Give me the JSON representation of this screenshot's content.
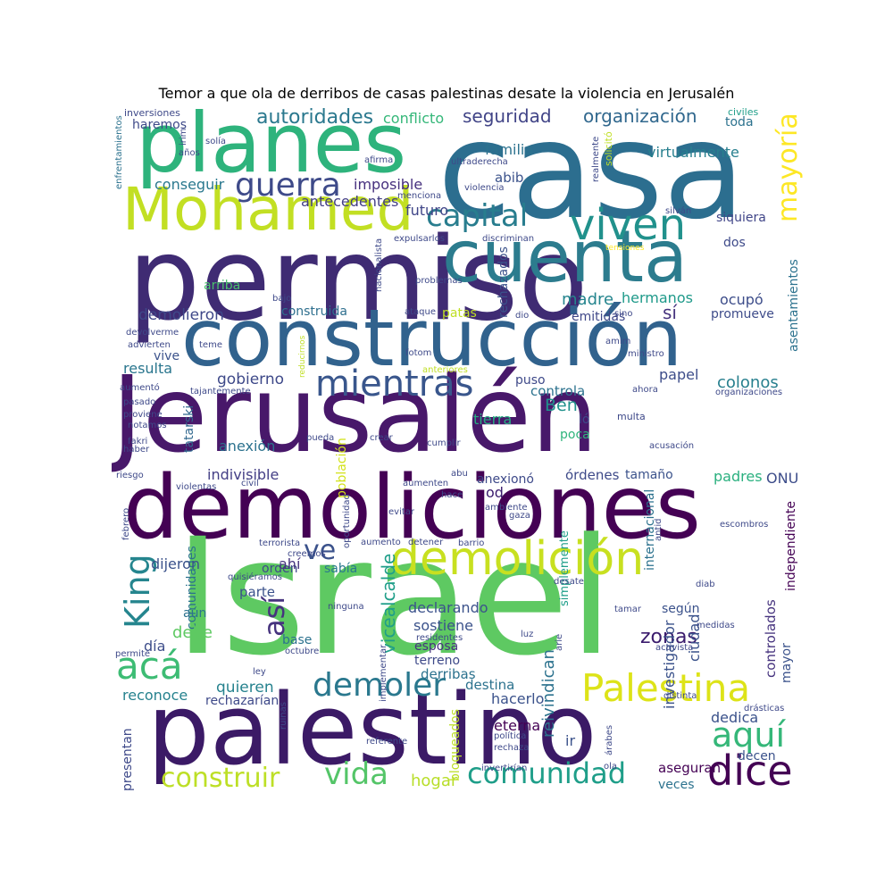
{
  "title": "Temor a que ola de derribos de casas palestinas desate la violencia en Jerusalén",
  "words": [
    {
      "text": "casa",
      "color": "#2c6e8f"
    },
    {
      "text": "permiso",
      "color": "#3f2b73"
    },
    {
      "text": "planes",
      "color": "#2eb37c"
    },
    {
      "text": "Mohamed",
      "color": "#c2df23"
    },
    {
      "text": "cuenta",
      "color": "#2c7c8e"
    },
    {
      "text": "construcción",
      "color": "#31628d"
    },
    {
      "text": "Jerusalén",
      "color": "#48186a"
    },
    {
      "text": "demoliciones",
      "color": "#440154"
    },
    {
      "text": "Israel",
      "color": "#5ec962"
    },
    {
      "text": "palestino",
      "color": "#3b1a66"
    },
    {
      "text": "demolición",
      "color": "#c8e020"
    },
    {
      "text": "mientras",
      "color": "#39568c"
    },
    {
      "text": "viven",
      "color": "#21918c"
    },
    {
      "text": "guerra",
      "color": "#3e4a89"
    },
    {
      "text": "capital",
      "color": "#287d8e"
    },
    {
      "text": "mayoría",
      "color": "#fde725"
    },
    {
      "text": "autoridades",
      "color": "#2a788e"
    },
    {
      "text": "seguridad",
      "color": "#414487"
    },
    {
      "text": "organización",
      "color": "#31688e"
    },
    {
      "text": "Palestina",
      "color": "#dde318"
    },
    {
      "text": "aquí",
      "color": "#35b779"
    },
    {
      "text": "dice",
      "color": "#440154"
    },
    {
      "text": "comunidad",
      "color": "#1f9e89"
    },
    {
      "text": "vida",
      "color": "#54c568"
    },
    {
      "text": "construir",
      "color": "#bddf26"
    },
    {
      "text": "demoler",
      "color": "#2a788e"
    },
    {
      "text": "acá",
      "color": "#3dbc74"
    },
    {
      "text": "King",
      "color": "#25858e"
    },
    {
      "text": "ve",
      "color": "#3b528b"
    },
    {
      "text": "así",
      "color": "#46337e"
    },
    {
      "text": "zonas",
      "color": "#3b1c6d"
    },
    {
      "text": "hogar",
      "color": "#b8de29"
    },
    {
      "text": "conflicto",
      "color": "#35b779"
    },
    {
      "text": "toda",
      "color": "#2c728e"
    },
    {
      "text": "civiles",
      "color": "#1f9e89"
    },
    {
      "text": "virtualmente",
      "color": "#277f8e"
    },
    {
      "text": "familia",
      "color": "#2c728e"
    },
    {
      "text": "imposible",
      "color": "#46307e"
    },
    {
      "text": "abib",
      "color": "#3b528b"
    },
    {
      "text": "conseguir",
      "color": "#2a788e"
    },
    {
      "text": "haremos",
      "color": "#3e4989"
    },
    {
      "text": "antecedentes",
      "color": "#433e85"
    },
    {
      "text": "futuro",
      "color": "#404688"
    },
    {
      "text": "siquiera",
      "color": "#404588"
    },
    {
      "text": "dos",
      "color": "#3e4a89"
    },
    {
      "text": "madre",
      "color": "#25858e"
    },
    {
      "text": "hermanos",
      "color": "#1f9a8a"
    },
    {
      "text": "ocupó",
      "color": "#3d4d8a"
    },
    {
      "text": "promueve",
      "color": "#3e4c8a"
    },
    {
      "text": "sí",
      "color": "#46337e"
    },
    {
      "text": "emitidas",
      "color": "#3f4788"
    },
    {
      "text": "patas",
      "color": "#c0df25"
    },
    {
      "text": "construida",
      "color": "#2e6f8e"
    },
    {
      "text": "demolieron",
      "color": "#3f4889"
    },
    {
      "text": "arriba",
      "color": "#4ac16d"
    },
    {
      "text": "vive",
      "color": "#3b528b"
    },
    {
      "text": "resulta",
      "color": "#2a768e"
    },
    {
      "text": "gobierno",
      "color": "#3e4989"
    },
    {
      "text": "colonos",
      "color": "#277f8e"
    },
    {
      "text": "papel",
      "color": "#3d4d8a"
    },
    {
      "text": "puso",
      "color": "#3e4989"
    },
    {
      "text": "controla",
      "color": "#2c728e"
    },
    {
      "text": "Ben",
      "color": "#21918c"
    },
    {
      "text": "ló",
      "color": "#3e4a89"
    },
    {
      "text": "tierra",
      "color": "#26ad81"
    },
    {
      "text": "poca",
      "color": "#2fb47c"
    },
    {
      "text": "anexión",
      "color": "#2c728e"
    },
    {
      "text": "indivisible",
      "color": "#433e85"
    },
    {
      "text": "órdenes",
      "color": "#3e4a89"
    },
    {
      "text": "tamaño",
      "color": "#3b528b"
    },
    {
      "text": "padres",
      "color": "#2ab07f"
    },
    {
      "text": "ONU",
      "color": "#3d4d8a"
    },
    {
      "text": "anexionó",
      "color": "#3e4a89"
    },
    {
      "text": "od",
      "color": "#3b1c6d"
    },
    {
      "text": "comunidades",
      "color": "#2c728e"
    },
    {
      "text": "orden",
      "color": "#3e4989"
    },
    {
      "text": "ahí",
      "color": "#46337e"
    },
    {
      "text": "sabía",
      "color": "#2a788e"
    },
    {
      "text": "dijeron",
      "color": "#3b528b"
    },
    {
      "text": "parte",
      "color": "#3b528b"
    },
    {
      "text": "aún",
      "color": "#2c728e"
    },
    {
      "text": "declarando",
      "color": "#3b528b"
    },
    {
      "text": "según",
      "color": "#3b528b"
    },
    {
      "text": "debe",
      "color": "#5ec962"
    },
    {
      "text": "sostiene",
      "color": "#3b528b"
    },
    {
      "text": "base",
      "color": "#2c728e"
    },
    {
      "text": "esposa",
      "color": "#46337e"
    },
    {
      "text": "día",
      "color": "#3d4d8a"
    },
    {
      "text": "quieren",
      "color": "#26828e"
    },
    {
      "text": "rechazarían",
      "color": "#3e4989"
    },
    {
      "text": "reconoce",
      "color": "#26828e"
    },
    {
      "text": "terreno",
      "color": "#3e4989"
    },
    {
      "text": "derribas",
      "color": "#2c728e"
    },
    {
      "text": "destina",
      "color": "#2c728e"
    },
    {
      "text": "hacerlo",
      "color": "#3b528b"
    },
    {
      "text": "eterna",
      "color": "#440154"
    },
    {
      "text": "ir",
      "color": "#3b528b"
    },
    {
      "text": "dedica",
      "color": "#3b528b"
    },
    {
      "text": "decen",
      "color": "#3b528b"
    },
    {
      "text": "aseguran",
      "color": "#440154"
    },
    {
      "text": "veces",
      "color": "#2c728e"
    },
    {
      "text": "vicealcalde",
      "color": "#1f9e89"
    },
    {
      "text": "reivindican",
      "color": "#2c728e"
    },
    {
      "text": "investigador",
      "color": "#3b528b"
    },
    {
      "text": "ciudad",
      "color": "#3b528b"
    },
    {
      "text": "controlados",
      "color": "#46337e"
    },
    {
      "text": "mayor",
      "color": "#3b528b"
    },
    {
      "text": "independiente",
      "color": "#440154"
    },
    {
      "text": "internacional",
      "color": "#2c728e"
    },
    {
      "text": "rechazados",
      "color": "#3b528b"
    },
    {
      "text": "asentamientos",
      "color": "#2c728e"
    },
    {
      "text": "presentan",
      "color": "#3e4989"
    },
    {
      "text": "bloqueados",
      "color": "#bddf26"
    },
    {
      "text": "simplemente",
      "color": "#1f9e89"
    },
    {
      "text": "población",
      "color": "#d2e21b"
    },
    {
      "text": "tatarski",
      "color": "#31688e"
    },
    {
      "text": "enfrentamientos",
      "color": "#2c728e"
    },
    {
      "text": "inversiones",
      "color": "#3e4989"
    },
    {
      "text": "años",
      "color": "#3e4989"
    },
    {
      "text": "solía",
      "color": "#3e4989"
    },
    {
      "text": "irim",
      "color": "#3e4989"
    },
    {
      "text": "afirma",
      "color": "#3e4989"
    },
    {
      "text": "ultraderecha",
      "color": "#3e4989"
    },
    {
      "text": "violencia",
      "color": "#3e4989"
    },
    {
      "text": "menciona",
      "color": "#3e4989"
    },
    {
      "text": "realmente",
      "color": "#3e4989"
    },
    {
      "text": "solicitó",
      "color": "#c0df25"
    },
    {
      "text": "silván",
      "color": "#3e4989"
    },
    {
      "text": "expulsarlos",
      "color": "#3e4989"
    },
    {
      "text": "discriminan",
      "color": "#3e4989"
    },
    {
      "text": "tensiones",
      "color": "#fde725"
    },
    {
      "text": "nacionalista",
      "color": "#3e4989"
    },
    {
      "text": "problemas",
      "color": "#3e4989"
    },
    {
      "text": "bajo",
      "color": "#3e4989"
    },
    {
      "text": "ataque",
      "color": "#3e4989"
    },
    {
      "text": "dio",
      "color": "#3e4989"
    },
    {
      "text": "sino",
      "color": "#3e4989"
    },
    {
      "text": "devolverme",
      "color": "#3e4989"
    },
    {
      "text": "advierten",
      "color": "#3e4989"
    },
    {
      "text": "teme",
      "color": "#3e4989"
    },
    {
      "text": "reducirnos",
      "color": "#c0df25"
    },
    {
      "text": "fotom",
      "color": "#3e4989"
    },
    {
      "text": "anteriores",
      "color": "#c0df25"
    },
    {
      "text": "ministro",
      "color": "#3e4989"
    },
    {
      "text": "amim",
      "color": "#3e4989"
    },
    {
      "text": "aumentó",
      "color": "#3e4989"
    },
    {
      "text": "tajantemente",
      "color": "#3e4989"
    },
    {
      "text": "ahora",
      "color": "#3e4989"
    },
    {
      "text": "organizaciones",
      "color": "#3e4989"
    },
    {
      "text": "multa",
      "color": "#3e4989"
    },
    {
      "text": "pasado",
      "color": "#3e4989"
    },
    {
      "text": "proviene",
      "color": "#3e4989"
    },
    {
      "text": "notamos",
      "color": "#3e4989"
    },
    {
      "text": "fakri",
      "color": "#3e4989"
    },
    {
      "text": "haber",
      "color": "#3e4989"
    },
    {
      "text": "pueda",
      "color": "#3e4989"
    },
    {
      "text": "crear",
      "color": "#3e4989"
    },
    {
      "text": "cumplir",
      "color": "#3e4989"
    },
    {
      "text": "acusación",
      "color": "#3e4989"
    },
    {
      "text": "riesgo",
      "color": "#3e4989"
    },
    {
      "text": "civil",
      "color": "#3e4989"
    },
    {
      "text": "violentas",
      "color": "#3e4989"
    },
    {
      "text": "abu",
      "color": "#3e4989"
    },
    {
      "text": "aumenten",
      "color": "#3e4989"
    },
    {
      "text": "hace",
      "color": "#3e4989"
    },
    {
      "text": "oportunidad",
      "color": "#3e4989"
    },
    {
      "text": "evitar",
      "color": "#3e4989"
    },
    {
      "text": "ambiente",
      "color": "#3e4989"
    },
    {
      "text": "gaza",
      "color": "#3e4989"
    },
    {
      "text": "febrero",
      "color": "#3e4989"
    },
    {
      "text": "terrorista",
      "color": "#3e4989"
    },
    {
      "text": "creemos",
      "color": "#3e4989"
    },
    {
      "text": "aumento",
      "color": "#3e4989"
    },
    {
      "text": "detener",
      "color": "#3e4989"
    },
    {
      "text": "barrio",
      "color": "#3e4989"
    },
    {
      "text": "antid",
      "color": "#3e4989"
    },
    {
      "text": "escombros",
      "color": "#3e4989"
    },
    {
      "text": "quisiéramos",
      "color": "#3e4989"
    },
    {
      "text": "desate",
      "color": "#3e4989"
    },
    {
      "text": "diab",
      "color": "#3e4989"
    },
    {
      "text": "ninguna",
      "color": "#3e4989"
    },
    {
      "text": "tamar",
      "color": "#3e4989"
    },
    {
      "text": "medidas",
      "color": "#3e4989"
    },
    {
      "text": "residentes",
      "color": "#3e4989"
    },
    {
      "text": "implementar",
      "color": "#3e4989"
    },
    {
      "text": "luz",
      "color": "#3e4989"
    },
    {
      "text": "permite",
      "color": "#3e4989"
    },
    {
      "text": "octubre",
      "color": "#3e4989"
    },
    {
      "text": "activista",
      "color": "#3e4989"
    },
    {
      "text": "arie",
      "color": "#3e4989"
    },
    {
      "text": "ley",
      "color": "#3e4989"
    },
    {
      "text": "distinta",
      "color": "#3e4989"
    },
    {
      "text": "drásticas",
      "color": "#3e4989"
    },
    {
      "text": "ruinas",
      "color": "#3e4989"
    },
    {
      "text": "política",
      "color": "#3e4989"
    },
    {
      "text": "rechaza",
      "color": "#3e4989"
    },
    {
      "text": "árabes",
      "color": "#3e4989"
    },
    {
      "text": "referente",
      "color": "#3e4989"
    },
    {
      "text": "invertirían",
      "color": "#3e4989"
    },
    {
      "text": "ola",
      "color": "#3e4989"
    }
  ]
}
